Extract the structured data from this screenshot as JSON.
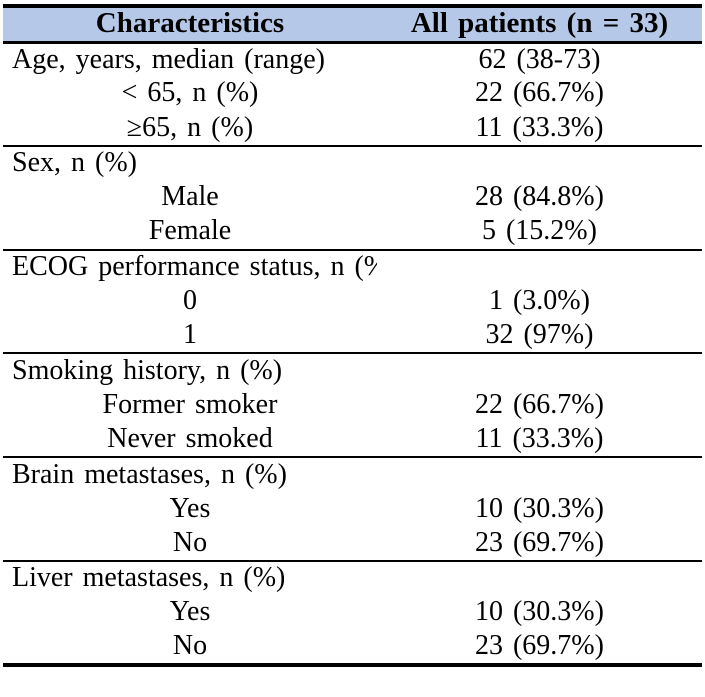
{
  "table": {
    "header_bg": "#b5c8e8",
    "border_color": "#000000",
    "columns": [
      "Characteristics",
      "All patients (n = 33)"
    ],
    "sections": [
      {
        "rows": [
          {
            "label": "Age, years, median (range)",
            "align": "left",
            "value": "62 (38-73)"
          },
          {
            "label": "< 65, n (%)",
            "align": "center",
            "value": "22 (66.7%)"
          },
          {
            "label": "≥65, n (%)",
            "align": "center",
            "value": "11 (33.3%)"
          }
        ]
      },
      {
        "rows": [
          {
            "label": "Sex, n (%)",
            "align": "left",
            "value": ""
          },
          {
            "label": "Male",
            "align": "center",
            "value": "28 (84.8%)"
          },
          {
            "label": "Female",
            "align": "center",
            "value": "5 (15.2%)"
          }
        ]
      },
      {
        "rows": [
          {
            "label": "ECOG performance status, n (%)",
            "align": "left",
            "value": ""
          },
          {
            "label": "0",
            "align": "center",
            "value": "1 (3.0%)"
          },
          {
            "label": "1",
            "align": "center",
            "value": "32 (97%)"
          }
        ]
      },
      {
        "rows": [
          {
            "label": "Smoking history, n (%)",
            "align": "left",
            "value": ""
          },
          {
            "label": "Former smoker",
            "align": "center",
            "value": "22 (66.7%)"
          },
          {
            "label": "Never smoked",
            "align": "center",
            "value": "11 (33.3%)"
          }
        ]
      },
      {
        "rows": [
          {
            "label": "Brain metastases, n (%)",
            "align": "left",
            "value": ""
          },
          {
            "label": "Yes",
            "align": "center",
            "value": "10 (30.3%)"
          },
          {
            "label": "No",
            "align": "center",
            "value": "23 (69.7%)"
          }
        ]
      },
      {
        "rows": [
          {
            "label": "Liver metastases, n (%)",
            "align": "left",
            "value": ""
          },
          {
            "label": "Yes",
            "align": "center",
            "value": "10 (30.3%)"
          },
          {
            "label": "No",
            "align": "center",
            "value": "23 (69.7%)"
          }
        ]
      }
    ]
  }
}
